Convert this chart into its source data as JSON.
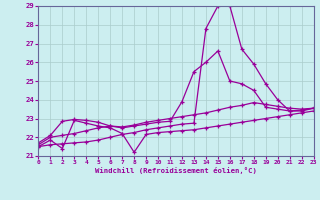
{
  "xlabel": "Windchill (Refroidissement éolien,°C)",
  "xlim": [
    0,
    23
  ],
  "ylim": [
    21,
    29
  ],
  "yticks": [
    21,
    22,
    23,
    24,
    25,
    26,
    27,
    28,
    29
  ],
  "xticks": [
    0,
    1,
    2,
    3,
    4,
    5,
    6,
    7,
    8,
    9,
    10,
    11,
    12,
    13,
    14,
    15,
    16,
    17,
    18,
    19,
    20,
    21,
    22,
    23
  ],
  "bg_color": "#cceef0",
  "grid_color": "#aacccc",
  "line_color": "#990099",
  "lines": [
    {
      "x": [
        0,
        1,
        2,
        3,
        4,
        5,
        6,
        7,
        8,
        9,
        10,
        11,
        12,
        13,
        14,
        15,
        16,
        17,
        18,
        19,
        20,
        21,
        22,
        23
      ],
      "y": [
        21.5,
        21.85,
        21.4,
        22.9,
        22.75,
        22.6,
        22.5,
        22.2,
        21.2,
        22.15,
        22.25,
        22.3,
        22.35,
        22.4,
        22.5,
        22.6,
        22.7,
        22.8,
        22.9,
        23.0,
        23.1,
        23.2,
        23.3,
        23.4
      ]
    },
    {
      "x": [
        0,
        1,
        2,
        3,
        4,
        5,
        6,
        7,
        8,
        9,
        10,
        11,
        12,
        13,
        14,
        15,
        16,
        17,
        18,
        19,
        20,
        21,
        22,
        23
      ],
      "y": [
        21.6,
        22.0,
        22.1,
        22.2,
        22.35,
        22.5,
        22.6,
        22.55,
        22.65,
        22.8,
        22.9,
        23.0,
        23.1,
        23.2,
        23.3,
        23.45,
        23.6,
        23.7,
        23.85,
        23.75,
        23.65,
        23.55,
        23.5,
        23.55
      ]
    },
    {
      "x": [
        0,
        1,
        2,
        3,
        4,
        5,
        6,
        7,
        8,
        9,
        10,
        11,
        12,
        13,
        14,
        15,
        16,
        17,
        18,
        19,
        20,
        21,
        22,
        23
      ],
      "y": [
        21.7,
        22.1,
        22.85,
        22.95,
        22.9,
        22.8,
        22.6,
        22.5,
        22.6,
        22.7,
        22.8,
        22.85,
        23.9,
        25.5,
        26.0,
        26.6,
        25.0,
        24.85,
        24.5,
        23.6,
        23.5,
        23.4,
        23.45,
        23.55
      ]
    },
    {
      "x": [
        0,
        1,
        2,
        3,
        4,
        5,
        6,
        7,
        8,
        9,
        10,
        11,
        12,
        13,
        14,
        15,
        16,
        17,
        18,
        19,
        20,
        21,
        22,
        23
      ],
      "y": [
        21.5,
        21.6,
        21.65,
        21.7,
        21.75,
        21.85,
        22.0,
        22.15,
        22.25,
        22.4,
        22.5,
        22.6,
        22.7,
        22.75,
        27.8,
        29.0,
        29.0,
        26.7,
        25.9,
        24.85,
        24.0,
        23.4,
        23.4,
        23.55
      ]
    }
  ]
}
